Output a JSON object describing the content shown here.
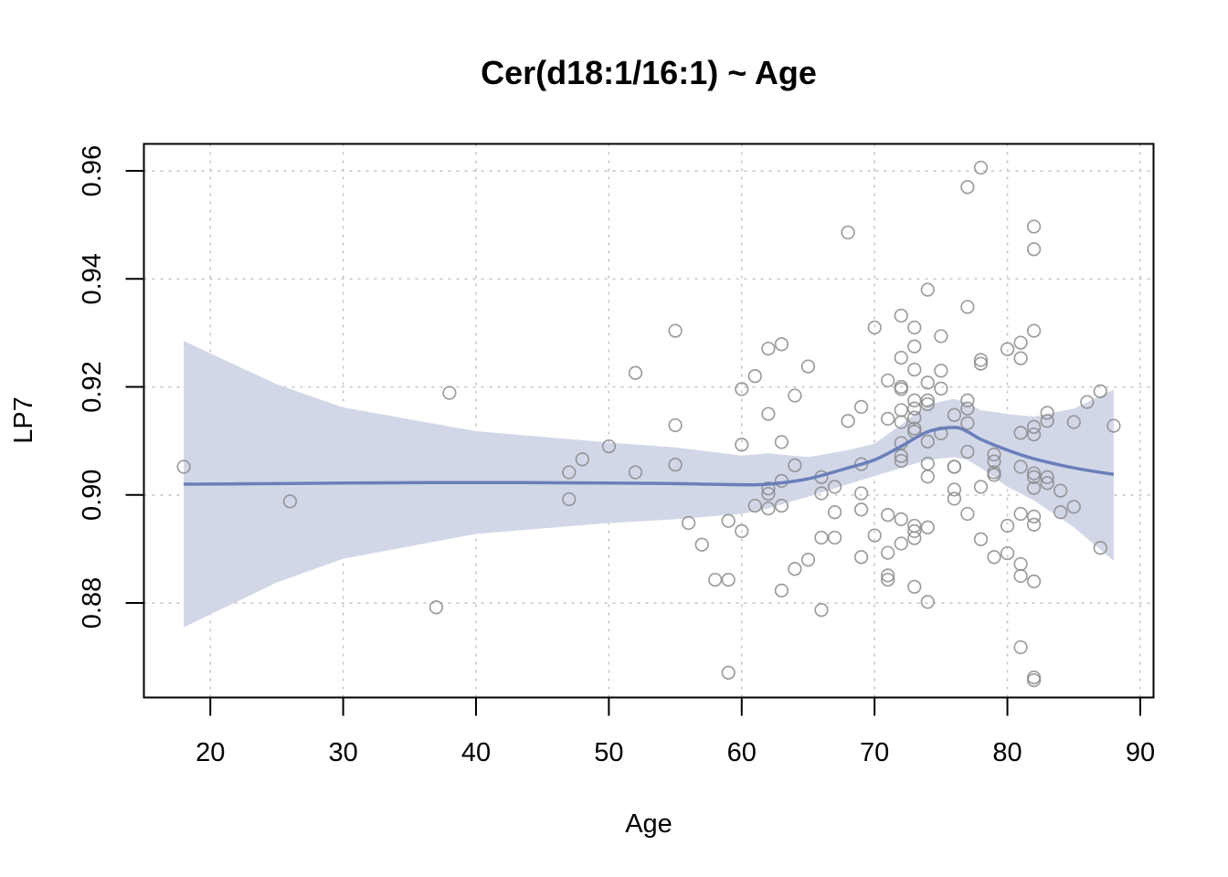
{
  "chart_data": {
    "type": "scatter",
    "title": "Cer(d18:1/16:1) ~ Age",
    "xlabel": "Age",
    "ylabel": "LP7",
    "xlim": [
      15,
      91
    ],
    "ylim": [
      0.8625,
      0.965
    ],
    "x_ticks": [
      20,
      30,
      40,
      50,
      60,
      70,
      80,
      90
    ],
    "y_ticks": [
      0.88,
      0.9,
      0.92,
      0.94,
      0.96
    ],
    "x_tick_labels": [
      "20",
      "30",
      "40",
      "50",
      "60",
      "70",
      "80",
      "90"
    ],
    "y_tick_labels": [
      "0.88",
      "0.90",
      "0.92",
      "0.94",
      "0.96"
    ],
    "grid": true,
    "colors": {
      "points": "#8c8c8c",
      "smooth_line": "#6a7fba",
      "confidence_band": "#d2d7e8",
      "grid": "#c8c8c8"
    },
    "points": [
      [
        18,
        0.9052
      ],
      [
        26,
        0.8988
      ],
      [
        37,
        0.8792
      ],
      [
        38,
        0.9189
      ],
      [
        47,
        0.9042
      ],
      [
        47,
        0.8992
      ],
      [
        48,
        0.9066
      ],
      [
        50,
        0.909
      ],
      [
        52,
        0.9226
      ],
      [
        52,
        0.9042
      ],
      [
        55,
        0.9304
      ],
      [
        55,
        0.9129
      ],
      [
        55,
        0.9056
      ],
      [
        56,
        0.8948
      ],
      [
        57,
        0.8908
      ],
      [
        58,
        0.8843
      ],
      [
        59,
        0.8843
      ],
      [
        59,
        0.8952
      ],
      [
        59,
        0.8671
      ],
      [
        60,
        0.9196
      ],
      [
        60,
        0.9093
      ],
      [
        60,
        0.8933
      ],
      [
        61,
        0.922
      ],
      [
        61,
        0.898
      ],
      [
        62,
        0.9271
      ],
      [
        62,
        0.915
      ],
      [
        62,
        0.9012
      ],
      [
        62,
        0.9002
      ],
      [
        62,
        0.8975
      ],
      [
        63,
        0.9279
      ],
      [
        63,
        0.9098
      ],
      [
        63,
        0.9026
      ],
      [
        63,
        0.898
      ],
      [
        63,
        0.8823
      ],
      [
        64,
        0.9184
      ],
      [
        64,
        0.9055
      ],
      [
        64,
        0.8863
      ],
      [
        65,
        0.9238
      ],
      [
        65,
        0.888
      ],
      [
        66,
        0.9033
      ],
      [
        66,
        0.9003
      ],
      [
        66,
        0.8921
      ],
      [
        66,
        0.8787
      ],
      [
        67,
        0.9015
      ],
      [
        67,
        0.8968
      ],
      [
        67,
        0.8921
      ],
      [
        68,
        0.9486
      ],
      [
        68,
        0.9137
      ],
      [
        69,
        0.9163
      ],
      [
        69,
        0.9057
      ],
      [
        69,
        0.9003
      ],
      [
        69,
        0.8973
      ],
      [
        69,
        0.8885
      ],
      [
        70,
        0.931
      ],
      [
        70,
        0.8925
      ],
      [
        71,
        0.9212
      ],
      [
        71,
        0.9141
      ],
      [
        71,
        0.8963
      ],
      [
        71,
        0.8893
      ],
      [
        71,
        0.8851
      ],
      [
        71,
        0.8843
      ],
      [
        72,
        0.9332
      ],
      [
        72,
        0.9254
      ],
      [
        72,
        0.92
      ],
      [
        72,
        0.9196
      ],
      [
        72,
        0.9157
      ],
      [
        72,
        0.9135
      ],
      [
        72,
        0.9096
      ],
      [
        72,
        0.9072
      ],
      [
        72,
        0.9063
      ],
      [
        72,
        0.8955
      ],
      [
        72,
        0.891
      ],
      [
        73,
        0.931
      ],
      [
        73,
        0.9275
      ],
      [
        73,
        0.9232
      ],
      [
        73,
        0.9175
      ],
      [
        73,
        0.916
      ],
      [
        73,
        0.9143
      ],
      [
        73,
        0.9123
      ],
      [
        73,
        0.9117
      ],
      [
        73,
        0.8943
      ],
      [
        73,
        0.8933
      ],
      [
        73,
        0.892
      ],
      [
        73,
        0.883
      ],
      [
        74,
        0.938
      ],
      [
        74,
        0.9208
      ],
      [
        74,
        0.9175
      ],
      [
        74,
        0.9168
      ],
      [
        74,
        0.9099
      ],
      [
        74,
        0.9058
      ],
      [
        74,
        0.9034
      ],
      [
        74,
        0.894
      ],
      [
        74,
        0.8802
      ],
      [
        75,
        0.9294
      ],
      [
        75,
        0.923
      ],
      [
        75,
        0.9197
      ],
      [
        75,
        0.9114
      ],
      [
        76,
        0.9148
      ],
      [
        76,
        0.9052
      ],
      [
        76,
        0.9052
      ],
      [
        76,
        0.901
      ],
      [
        76,
        0.8993
      ],
      [
        77,
        0.957
      ],
      [
        77,
        0.9348
      ],
      [
        77,
        0.9175
      ],
      [
        77,
        0.916
      ],
      [
        77,
        0.9133
      ],
      [
        77,
        0.908
      ],
      [
        77,
        0.8965
      ],
      [
        78,
        0.9606
      ],
      [
        78,
        0.925
      ],
      [
        78,
        0.9243
      ],
      [
        78,
        0.9015
      ],
      [
        78,
        0.8918
      ],
      [
        79,
        0.9075
      ],
      [
        79,
        0.9062
      ],
      [
        79,
        0.9042
      ],
      [
        79,
        0.9037
      ],
      [
        79,
        0.8885
      ],
      [
        80,
        0.927
      ],
      [
        80,
        0.8943
      ],
      [
        80,
        0.8892
      ],
      [
        81,
        0.9282
      ],
      [
        81,
        0.9253
      ],
      [
        81,
        0.9115
      ],
      [
        81,
        0.9052
      ],
      [
        81,
        0.8965
      ],
      [
        81,
        0.8872
      ],
      [
        81,
        0.885
      ],
      [
        81,
        0.8718
      ],
      [
        82,
        0.9497
      ],
      [
        82,
        0.9455
      ],
      [
        82,
        0.9304
      ],
      [
        82,
        0.9126
      ],
      [
        82,
        0.9112
      ],
      [
        82,
        0.904
      ],
      [
        82,
        0.9033
      ],
      [
        82,
        0.9013
      ],
      [
        82,
        0.896
      ],
      [
        82,
        0.8945
      ],
      [
        82,
        0.884
      ],
      [
        82,
        0.8662
      ],
      [
        82,
        0.8657
      ],
      [
        83,
        0.9152
      ],
      [
        83,
        0.9137
      ],
      [
        83,
        0.9033
      ],
      [
        83,
        0.9022
      ],
      [
        84,
        0.9008
      ],
      [
        84,
        0.8968
      ],
      [
        85,
        0.9135
      ],
      [
        85,
        0.8978
      ],
      [
        86,
        0.9172
      ],
      [
        87,
        0.9192
      ],
      [
        87,
        0.8902
      ],
      [
        88,
        0.9128
      ]
    ],
    "smooth_fit": {
      "x": [
        18,
        25,
        30,
        40,
        50,
        55,
        60,
        62,
        65,
        68,
        70,
        72,
        74,
        76,
        77,
        78,
        80,
        82,
        85,
        88
      ],
      "y": [
        0.902,
        0.9021,
        0.9022,
        0.9023,
        0.9022,
        0.9021,
        0.9019,
        0.902,
        0.903,
        0.905,
        0.9065,
        0.909,
        0.9117,
        0.9125,
        0.9117,
        0.9103,
        0.9083,
        0.9067,
        0.905,
        0.9038
      ],
      "lower": [
        0.8755,
        0.8838,
        0.8882,
        0.8928,
        0.8948,
        0.8955,
        0.8965,
        0.8975,
        0.8997,
        0.902,
        0.9035,
        0.905,
        0.9065,
        0.907,
        0.9065,
        0.905,
        0.9015,
        0.899,
        0.894,
        0.8878
      ],
      "upper": [
        0.9285,
        0.9205,
        0.9162,
        0.9118,
        0.9097,
        0.9088,
        0.9073,
        0.9077,
        0.907,
        0.9083,
        0.9095,
        0.913,
        0.9168,
        0.9178,
        0.917,
        0.9157,
        0.915,
        0.9145,
        0.916,
        0.9195
      ]
    }
  }
}
